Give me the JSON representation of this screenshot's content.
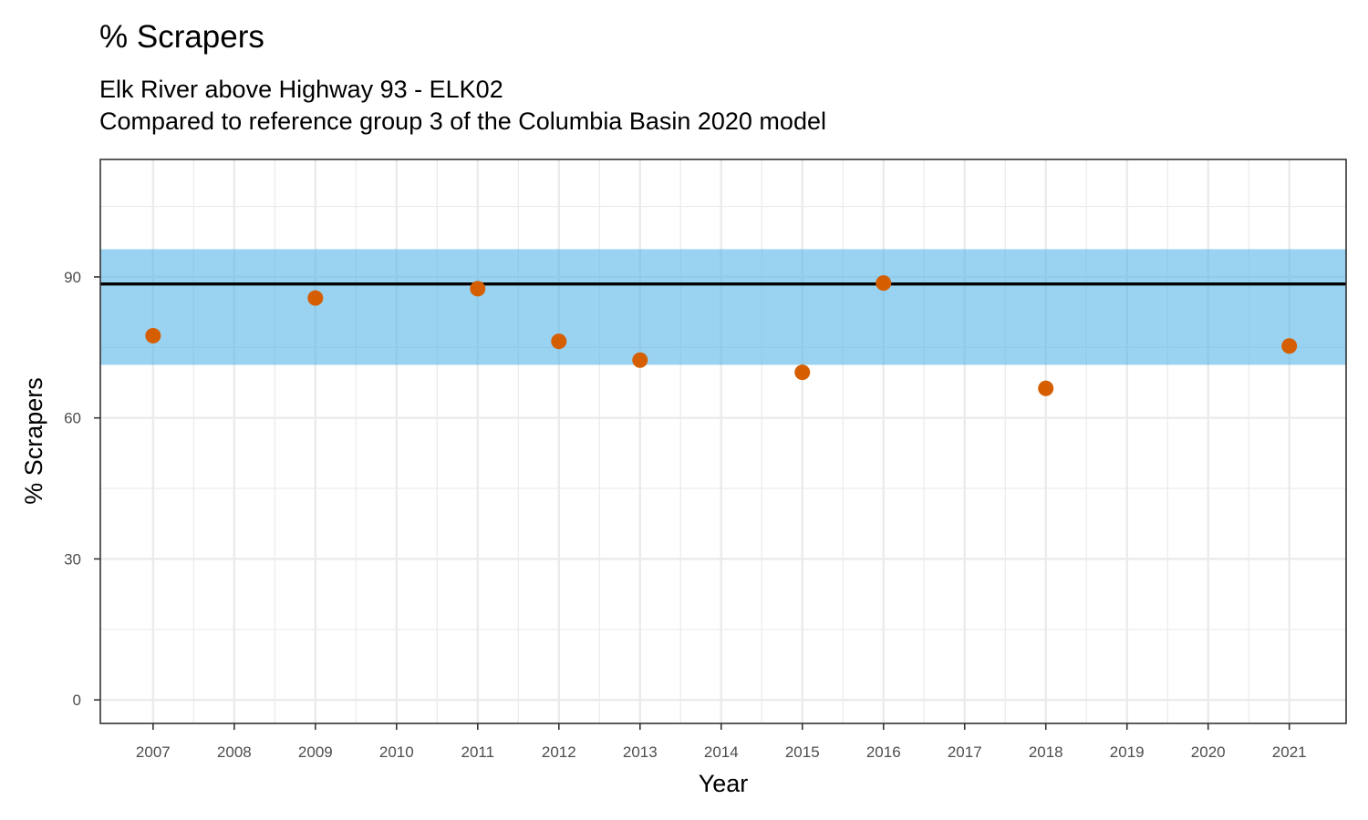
{
  "chart_data": {
    "type": "scatter",
    "title": "% Scrapers",
    "subtitle_lines": [
      "Elk River above Highway 93 - ELK02",
      "Compared to reference group 3 of the Columbia Basin 2020 model"
    ],
    "xlabel": "Year",
    "ylabel": "% Scrapers",
    "x_ticks": [
      "2007",
      "2008",
      "2009",
      "2010",
      "2011",
      "2012",
      "2013",
      "2014",
      "2015",
      "2016",
      "2017",
      "2018",
      "2019",
      "2020",
      "2021"
    ],
    "y_ticks": [
      0,
      30,
      60,
      90
    ],
    "xlim": [
      2006.35,
      2021.7
    ],
    "ylim": [
      -5,
      115
    ],
    "grid": true,
    "reference_band": {
      "lower": 71.3,
      "upper": 95.9,
      "color": "#56b4e9"
    },
    "reference_line": {
      "value": 88.5,
      "color": "#000000"
    },
    "point_color": "#d55e00",
    "points": [
      {
        "x": 2007,
        "y": 77.5
      },
      {
        "x": 2009,
        "y": 85.5
      },
      {
        "x": 2011,
        "y": 87.5
      },
      {
        "x": 2012,
        "y": 76.3
      },
      {
        "x": 2013,
        "y": 72.3
      },
      {
        "x": 2015,
        "y": 69.7
      },
      {
        "x": 2016,
        "y": 88.7
      },
      {
        "x": 2018,
        "y": 66.3
      },
      {
        "x": 2021,
        "y": 75.3
      }
    ]
  }
}
